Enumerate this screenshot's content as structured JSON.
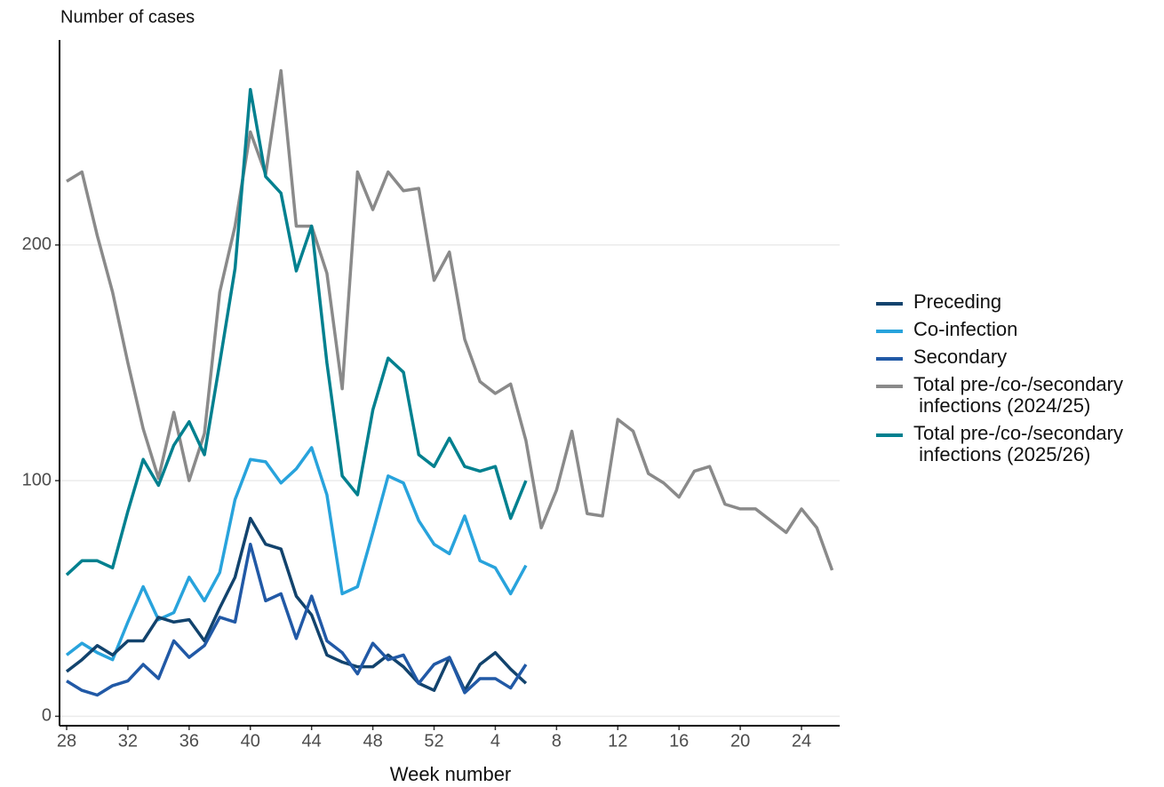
{
  "chart_data": {
    "type": "line",
    "y_label": "Number of cases",
    "x_label": "Week number",
    "categories": [
      28,
      null,
      null,
      null,
      32,
      null,
      null,
      null,
      36,
      null,
      null,
      null,
      40,
      null,
      null,
      null,
      44,
      null,
      null,
      null,
      48,
      null,
      null,
      null,
      52,
      null,
      null,
      null,
      4,
      null,
      null,
      null,
      8,
      null,
      null,
      null,
      12,
      null,
      null,
      null,
      16,
      null,
      null,
      null,
      20,
      null,
      null,
      null,
      24,
      null,
      null
    ],
    "ylim": [
      -4,
      287
    ],
    "yticks": [
      0,
      100,
      200
    ],
    "grid": true,
    "series": [
      {
        "name": "Preceding",
        "color": "#12436d",
        "values": [
          19,
          24,
          30,
          26,
          32,
          32,
          42,
          40,
          41,
          32,
          46,
          59,
          84,
          73,
          71,
          51,
          43,
          26,
          23,
          21,
          21,
          26,
          21,
          14,
          11,
          25,
          11,
          22,
          27,
          20,
          14,
          null,
          null,
          null,
          null,
          null,
          null,
          null,
          null,
          null,
          null,
          null,
          null,
          null,
          null,
          null,
          null,
          null,
          null,
          null,
          null
        ]
      },
      {
        "name": "Co-infection",
        "color": "#28a3dc",
        "values": [
          26,
          31,
          27,
          24,
          40,
          55,
          41,
          44,
          59,
          49,
          61,
          92,
          109,
          108,
          99,
          105,
          114,
          94,
          52,
          55,
          78,
          102,
          99,
          83,
          73,
          69,
          85,
          66,
          63,
          52,
          64,
          null,
          null,
          null,
          null,
          null,
          null,
          null,
          null,
          null,
          null,
          null,
          null,
          null,
          null,
          null,
          null,
          null,
          null,
          null,
          null
        ]
      },
      {
        "name": "Secondary",
        "color": "#2159a6",
        "values": [
          15,
          11,
          9,
          13,
          15,
          22,
          16,
          32,
          25,
          30,
          42,
          40,
          73,
          49,
          52,
          33,
          51,
          32,
          27,
          18,
          31,
          24,
          26,
          14,
          22,
          25,
          10,
          16,
          16,
          12,
          22,
          null,
          null,
          null,
          null,
          null,
          null,
          null,
          null,
          null,
          null,
          null,
          null,
          null,
          null,
          null,
          null,
          null,
          null,
          null,
          null
        ]
      },
      {
        "name": "Total pre-/co-/secondary\n infections (2024/25)",
        "color": "#8a8a8a",
        "values": [
          227,
          231,
          204,
          180,
          150,
          122,
          101,
          129,
          100,
          120,
          180,
          208,
          248,
          230,
          274,
          208,
          208,
          188,
          139,
          231,
          215,
          231,
          223,
          224,
          185,
          197,
          160,
          142,
          137,
          141,
          117,
          80,
          96,
          121,
          86,
          85,
          126,
          121,
          103,
          99,
          93,
          104,
          106,
          90,
          88,
          88,
          83,
          78,
          88,
          80,
          62
        ]
      },
      {
        "name": "Total pre-/co-/secondary\n infections (2025/26)",
        "color": "#00808f",
        "values": [
          60,
          66,
          66,
          63,
          87,
          109,
          98,
          115,
          125,
          111,
          150,
          190,
          266,
          229,
          222,
          189,
          208,
          150,
          102,
          94,
          130,
          152,
          146,
          111,
          106,
          118,
          106,
          104,
          106,
          84,
          100,
          null,
          null,
          null,
          null,
          null,
          null,
          null,
          null,
          null,
          null,
          null,
          null,
          null,
          null,
          null,
          null,
          null,
          null,
          null,
          null
        ]
      }
    ]
  }
}
